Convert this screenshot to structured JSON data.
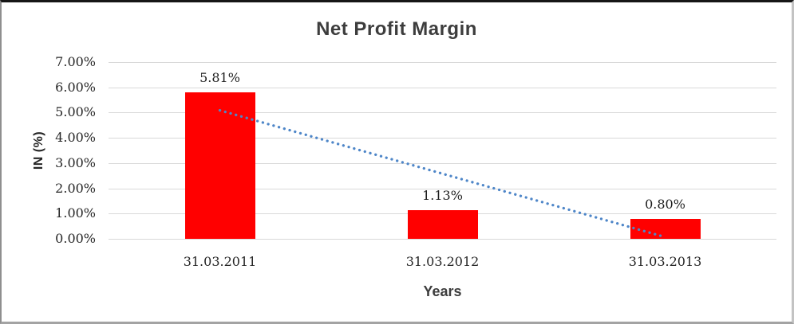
{
  "chart_data": {
    "type": "bar",
    "title": "Net Profit Margin",
    "xlabel": "Years",
    "ylabel": "IN (%)",
    "categories": [
      "31.03.2011",
      "31.03.2012",
      "31.03.2013"
    ],
    "series": [
      {
        "name": "Net Profit Margin",
        "values": [
          5.81,
          1.13,
          0.8
        ]
      }
    ],
    "data_labels": [
      "5.81%",
      "1.13%",
      "0.80%"
    ],
    "ylim": [
      0,
      7
    ],
    "ytick_step": 1,
    "ytick_labels": [
      "0.00%",
      "1.00%",
      "2.00%",
      "3.00%",
      "4.00%",
      "5.00%",
      "6.00%",
      "7.00%"
    ],
    "grid": true,
    "legend": "none",
    "bar_color": "#ff0000",
    "gridline_color": "#d9d9d9",
    "trendline": {
      "type": "linear",
      "style": "dotted",
      "color": "#4e86c8",
      "start_value": 5.09,
      "end_value": 0.07
    }
  }
}
